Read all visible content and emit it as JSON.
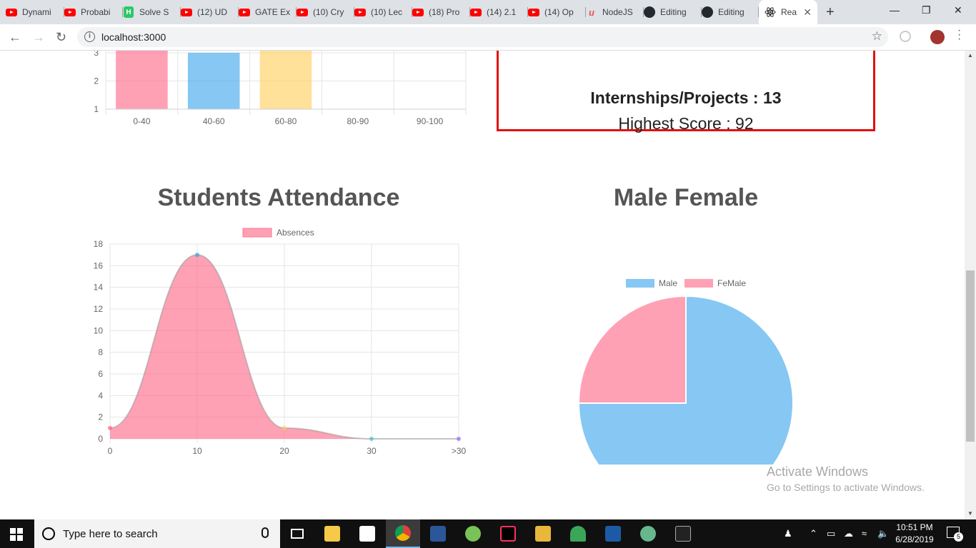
{
  "browser": {
    "tabs": [
      {
        "title": "Dynami",
        "icon": "youtube-icon"
      },
      {
        "title": "Probabi",
        "icon": "youtube-icon"
      },
      {
        "title": "Solve S",
        "icon": "hackerrank-icon"
      },
      {
        "title": "(12) UD",
        "icon": "youtube-icon"
      },
      {
        "title": "GATE Ex",
        "icon": "youtube-icon"
      },
      {
        "title": "(10) Cry",
        "icon": "youtube-icon"
      },
      {
        "title": "(10) Lec",
        "icon": "youtube-icon"
      },
      {
        "title": "(18) Pro",
        "icon": "youtube-icon"
      },
      {
        "title": "(14) 2.1",
        "icon": "youtube-icon"
      },
      {
        "title": "(14) Op",
        "icon": "youtube-icon"
      },
      {
        "title": "NodeJS",
        "icon": "udemy-icon"
      },
      {
        "title": "Editing",
        "icon": "github-icon"
      },
      {
        "title": "Editing",
        "icon": "github-icon"
      },
      {
        "title": "Rea",
        "icon": "react-icon",
        "active": true
      }
    ],
    "hackerrank_letter": "H",
    "udemy_letter": "u",
    "url": "localhost:3000"
  },
  "page": {
    "stats": {
      "internships_line": "Internships/Projects : 13",
      "highest_score_line": "Highest Score : 92"
    },
    "attendance_title": "Students Attendance",
    "gender_title": "Male Female"
  },
  "chart_data": [
    {
      "type": "bar",
      "categories": [
        "0-40",
        "40-60",
        "60-80",
        "80-90",
        "90-100"
      ],
      "values": [
        null,
        3,
        null,
        0,
        0
      ],
      "visible_y_ticks": [
        1,
        2,
        3
      ],
      "note_values": "first and third bars extend above visible area (greater than 3)",
      "colors": [
        "#ff6384",
        "#36a2eb",
        "#ffcd56",
        "#4bc0c0",
        "#9966ff"
      ],
      "grid": true
    },
    {
      "type": "area",
      "title": "Students Attendance",
      "legend": [
        "Absences"
      ],
      "legend_position": "top",
      "categories": [
        "0",
        "10",
        "20",
        "30",
        ">30"
      ],
      "series": [
        {
          "name": "Absences",
          "values": [
            1,
            17,
            1,
            0,
            0
          ]
        }
      ],
      "ylim": [
        0,
        18
      ],
      "y_ticks": [
        0,
        2,
        4,
        6,
        8,
        10,
        12,
        14,
        16,
        18
      ],
      "point_colors": [
        "#ff6384",
        "#36a2eb",
        "#ffcd56",
        "#4bc0c0",
        "#9966ff"
      ],
      "fill_color": "#ff6384",
      "grid": true
    },
    {
      "type": "pie",
      "title": "Male Female",
      "legend_position": "top",
      "labels": [
        "Male",
        "FeMale"
      ],
      "values": [
        75,
        25
      ],
      "colors": [
        "#36a2eb",
        "#ff6384"
      ]
    }
  ],
  "watermark": {
    "line1": "Activate Windows",
    "line2": "Go to Settings to activate Windows."
  },
  "taskbar": {
    "search_placeholder": "Type here to search",
    "time": "10:51 PM",
    "date": "6/28/2019",
    "notification_count": "5"
  }
}
